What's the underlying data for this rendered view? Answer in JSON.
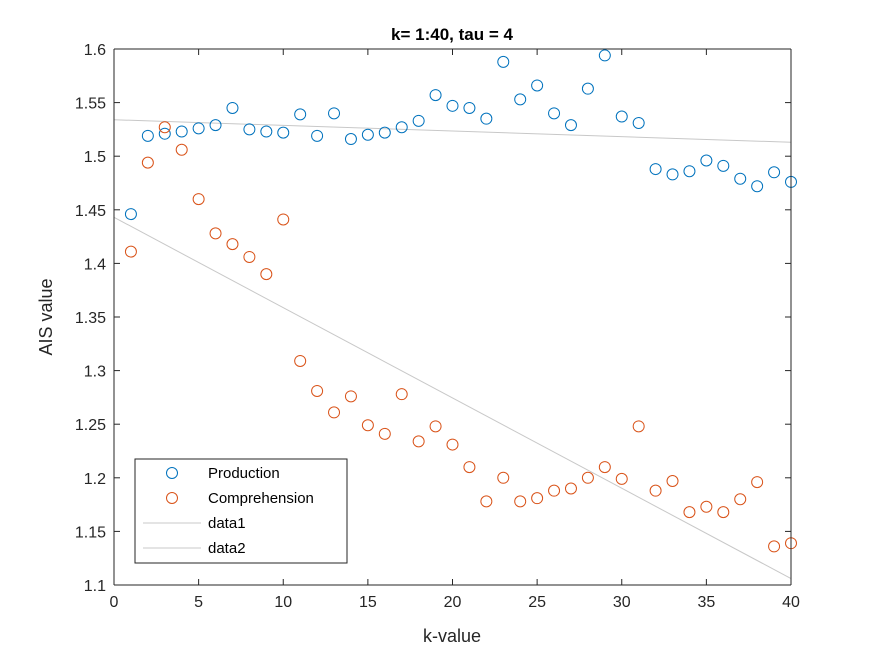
{
  "chart_data": {
    "type": "scatter",
    "title": "k= 1:40, tau = 4",
    "xlabel": "k-value",
    "ylabel": "AIS value",
    "xlim": [
      0,
      40
    ],
    "ylim": [
      1.1,
      1.6
    ],
    "xticks": [
      "0",
      "5",
      "10",
      "15",
      "20",
      "25",
      "30",
      "35",
      "40"
    ],
    "yticks": [
      "1.1",
      "1.15",
      "1.2",
      "1.25",
      "1.3",
      "1.35",
      "1.4",
      "1.45",
      "1.5",
      "1.55",
      "1.6"
    ],
    "grid": false,
    "legend_position": "bottom-left",
    "colors": {
      "production": "#0072BD",
      "comprehension": "#D95319",
      "fit": "#c8c8c8",
      "axis": "#262626"
    },
    "series": [
      {
        "name": "Production",
        "marker": "circle",
        "x": [
          1,
          2,
          3,
          4,
          5,
          6,
          7,
          8,
          9,
          10,
          11,
          12,
          13,
          14,
          15,
          16,
          17,
          18,
          19,
          20,
          21,
          22,
          23,
          24,
          25,
          26,
          27,
          28,
          29,
          30,
          31,
          32,
          33,
          34,
          35,
          36,
          37,
          38,
          39,
          40
        ],
        "y": [
          1.446,
          1.519,
          1.521,
          1.523,
          1.526,
          1.529,
          1.545,
          1.525,
          1.523,
          1.522,
          1.539,
          1.519,
          1.54,
          1.516,
          1.52,
          1.522,
          1.527,
          1.533,
          1.557,
          1.547,
          1.545,
          1.535,
          1.588,
          1.553,
          1.566,
          1.54,
          1.529,
          1.563,
          1.594,
          1.537,
          1.531,
          1.488,
          1.483,
          1.486,
          1.496,
          1.491,
          1.479,
          1.472,
          1.485,
          1.476
        ]
      },
      {
        "name": "Comprehension",
        "marker": "circle",
        "x": [
          1,
          2,
          3,
          4,
          5,
          6,
          7,
          8,
          9,
          10,
          11,
          12,
          13,
          14,
          15,
          16,
          17,
          18,
          19,
          20,
          21,
          22,
          23,
          24,
          25,
          26,
          27,
          28,
          29,
          30,
          31,
          32,
          33,
          34,
          35,
          36,
          37,
          38,
          39,
          40
        ],
        "y": [
          1.411,
          1.494,
          1.527,
          1.506,
          1.46,
          1.428,
          1.418,
          1.406,
          1.39,
          1.441,
          1.309,
          1.281,
          1.261,
          1.276,
          1.249,
          1.241,
          1.278,
          1.234,
          1.248,
          1.231,
          1.21,
          1.178,
          1.2,
          1.178,
          1.181,
          1.188,
          1.19,
          1.2,
          1.21,
          1.199,
          1.248,
          1.188,
          1.197,
          1.168,
          1.173,
          1.168,
          1.18,
          1.196,
          1.136,
          1.139
        ]
      },
      {
        "name": "data1",
        "marker": "line",
        "x": [
          0,
          40
        ],
        "y": [
          1.534,
          1.513
        ]
      },
      {
        "name": "data2",
        "marker": "line",
        "x": [
          0,
          40
        ],
        "y": [
          1.443,
          1.106
        ]
      }
    ]
  }
}
